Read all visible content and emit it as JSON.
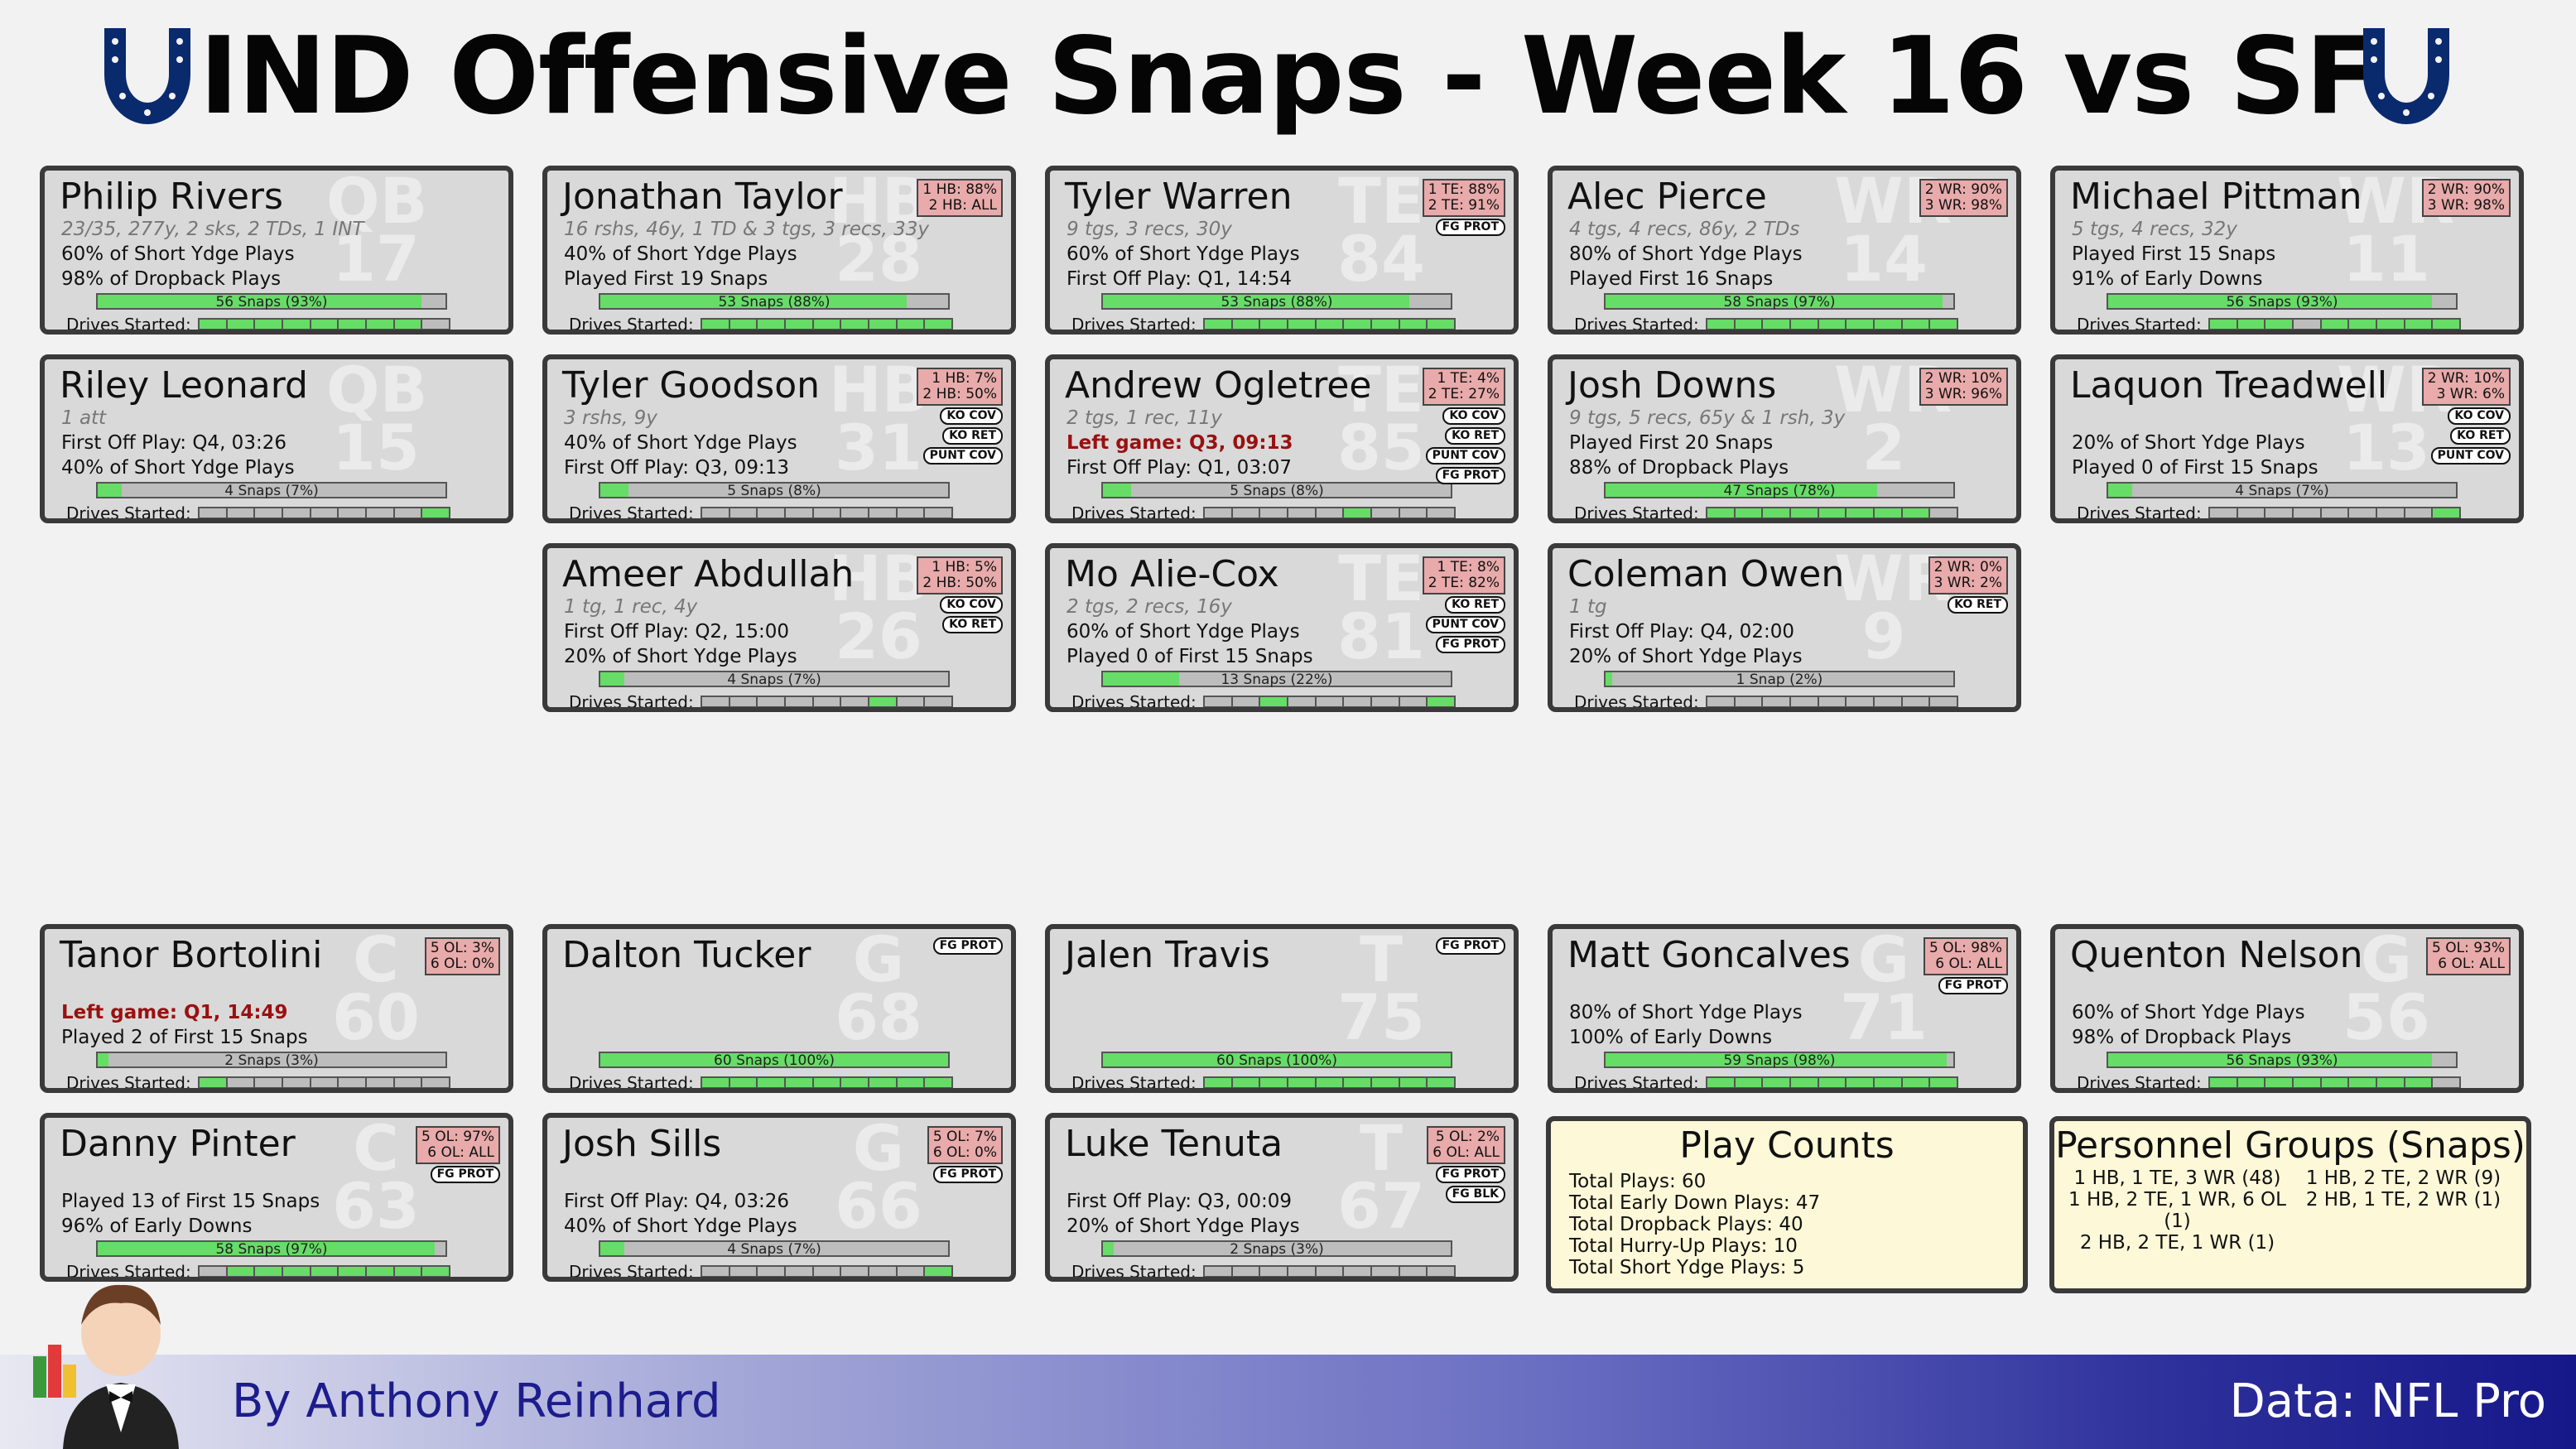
{
  "title": "IND Offensive Snaps - Week 16 vs SF",
  "byline": "By Anthony Reinhard",
  "source": "Data: NFL Pro",
  "colors": {
    "team_blue": "#0a2a6e",
    "bar_green": "#66dd66",
    "card_bg": "#d9d9d9",
    "badge_bg": "#e8aaaa",
    "info_bg": "#fdf8d8"
  },
  "drive_label": "Drives Started:",
  "cards": [
    {
      "name": "Philip Rivers",
      "pos": "QB",
      "num": "17",
      "lines": [
        {
          "t": "23/35, 277y, 2 sks, 2 TDs, 1 INT",
          "k": "stat"
        },
        {
          "t": "60% of Short Ydge Plays"
        },
        {
          "t": "98% of Dropback Plays"
        }
      ],
      "snaps": "56 Snaps (93%)",
      "pct": 93,
      "drives": [
        1,
        1,
        1,
        1,
        1,
        1,
        1,
        1,
        0
      ],
      "badge": "",
      "tags": []
    },
    {
      "name": "Jonathan Taylor",
      "pos": "HB",
      "num": "28",
      "lines": [
        {
          "t": "16 rshs, 46y, 1 TD & 3 tgs, 3 recs, 33y",
          "k": "stat"
        },
        {
          "t": "40% of Short Ydge Plays"
        },
        {
          "t": "Played First 19 Snaps"
        }
      ],
      "snaps": "53 Snaps (88%)",
      "pct": 88,
      "drives": [
        1,
        1,
        1,
        1,
        1,
        1,
        1,
        1,
        1
      ],
      "badge": "1 HB: 88%\n2 HB: ALL",
      "tags": []
    },
    {
      "name": "Tyler Warren",
      "pos": "TE",
      "num": "84",
      "lines": [
        {
          "t": "9 tgs, 3 recs, 30y",
          "k": "stat"
        },
        {
          "t": "60% of Short Ydge Plays"
        },
        {
          "t": "First Off Play: Q1, 14:54"
        }
      ],
      "snaps": "53 Snaps (88%)",
      "pct": 88,
      "drives": [
        1,
        1,
        1,
        1,
        1,
        1,
        1,
        1,
        1
      ],
      "badge": "1 TE: 88%\n2 TE: 91%",
      "tags": [
        "FG PROT"
      ]
    },
    {
      "name": "Alec Pierce",
      "pos": "WR",
      "num": "14",
      "lines": [
        {
          "t": "4 tgs, 4 recs, 86y, 2 TDs",
          "k": "stat"
        },
        {
          "t": "80% of Short Ydge Plays"
        },
        {
          "t": "Played First 16 Snaps"
        }
      ],
      "snaps": "58 Snaps (97%)",
      "pct": 97,
      "drives": [
        1,
        1,
        1,
        1,
        1,
        1,
        1,
        1,
        1
      ],
      "badge": "2 WR: 90%\n3 WR: 98%",
      "tags": []
    },
    {
      "name": "Michael Pittman",
      "pos": "WR",
      "num": "11",
      "lines": [
        {
          "t": "5 tgs, 4 recs, 32y",
          "k": "stat"
        },
        {
          "t": "Played First 15 Snaps"
        },
        {
          "t": "91% of Early Downs"
        }
      ],
      "snaps": "56 Snaps (93%)",
      "pct": 93,
      "drives": [
        1,
        1,
        1,
        0,
        1,
        1,
        1,
        1,
        1
      ],
      "badge": "2 WR: 90%\n3 WR: 98%",
      "tags": []
    },
    {
      "name": "Riley Leonard",
      "pos": "QB",
      "num": "15",
      "lines": [
        {
          "t": "1 att",
          "k": "stat"
        },
        {
          "t": "First Off Play: Q4, 03:26"
        },
        {
          "t": "40% of Short Ydge Plays"
        }
      ],
      "snaps": "4 Snaps (7%)",
      "pct": 7,
      "drives": [
        0,
        0,
        0,
        0,
        0,
        0,
        0,
        0,
        1
      ],
      "badge": "",
      "tags": []
    },
    {
      "name": "Tyler Goodson",
      "pos": "HB",
      "num": "31",
      "lines": [
        {
          "t": "3 rshs, 9y",
          "k": "stat"
        },
        {
          "t": "40% of Short Ydge Plays"
        },
        {
          "t": "First Off Play: Q3, 09:13"
        }
      ],
      "snaps": "5 Snaps (8%)",
      "pct": 8,
      "drives": [
        0,
        0,
        0,
        0,
        0,
        0,
        0,
        0,
        0
      ],
      "badge": "1 HB: 7%\n2 HB: 50%",
      "tags": [
        "KO COV",
        "KO RET",
        "PUNT COV"
      ]
    },
    {
      "name": "Andrew Ogletree",
      "pos": "TE",
      "num": "85",
      "lines": [
        {
          "t": "2 tgs, 1 rec, 11y",
          "k": "stat"
        },
        {
          "t": "Left game: Q3, 09:13",
          "k": "left"
        },
        {
          "t": "First Off Play: Q1, 03:07"
        }
      ],
      "snaps": "5 Snaps (8%)",
      "pct": 8,
      "drives": [
        0,
        0,
        0,
        0,
        0,
        1,
        0,
        0,
        0
      ],
      "badge": "1 TE: 4%\n2 TE: 27%",
      "tags": [
        "KO COV",
        "KO RET",
        "PUNT COV",
        "FG PROT"
      ]
    },
    {
      "name": "Josh Downs",
      "pos": "WR",
      "num": "2",
      "lines": [
        {
          "t": "9 tgs, 5 recs, 65y & 1 rsh, 3y",
          "k": "stat"
        },
        {
          "t": "Played First 20 Snaps"
        },
        {
          "t": "88% of Dropback Plays"
        }
      ],
      "snaps": "47 Snaps (78%)",
      "pct": 78,
      "drives": [
        1,
        1,
        1,
        1,
        1,
        1,
        1,
        1,
        0
      ],
      "badge": "2 WR: 10%\n3 WR: 96%",
      "tags": []
    },
    {
      "name": "Laquon Treadwell",
      "pos": "WR",
      "num": "13",
      "lines": [
        {
          "t": "",
          "k": "stat"
        },
        {
          "t": "20% of Short Ydge Plays"
        },
        {
          "t": "Played 0 of First 15 Snaps"
        }
      ],
      "snaps": "4 Snaps (7%)",
      "pct": 7,
      "drives": [
        0,
        0,
        0,
        0,
        0,
        0,
        0,
        0,
        1
      ],
      "badge": "2 WR: 10%\n3 WR: 6%",
      "tags": [
        "KO COV",
        "KO RET",
        "PUNT COV"
      ]
    },
    {
      "name": "Ameer Abdullah",
      "pos": "HB",
      "num": "26",
      "lines": [
        {
          "t": "1 tg, 1 rec, 4y",
          "k": "stat"
        },
        {
          "t": "First Off Play: Q2, 15:00"
        },
        {
          "t": "20% of Short Ydge Plays"
        }
      ],
      "snaps": "4 Snaps (7%)",
      "pct": 7,
      "drives": [
        0,
        0,
        0,
        0,
        0,
        0,
        1,
        0,
        0
      ],
      "badge": "1 HB: 5%\n2 HB: 50%",
      "tags": [
        "KO COV",
        "KO RET"
      ]
    },
    {
      "name": "Mo Alie-Cox",
      "pos": "TE",
      "num": "81",
      "lines": [
        {
          "t": "2 tgs, 2 recs, 16y",
          "k": "stat"
        },
        {
          "t": "60% of Short Ydge Plays"
        },
        {
          "t": "Played 0 of First 15 Snaps"
        }
      ],
      "snaps": "13 Snaps (22%)",
      "pct": 22,
      "drives": [
        0,
        0,
        1,
        0,
        0,
        0,
        0,
        0,
        1
      ],
      "badge": "1 TE: 8%\n2 TE: 82%",
      "tags": [
        "KO RET",
        "PUNT COV",
        "FG PROT"
      ]
    },
    {
      "name": "Coleman Owen",
      "pos": "WR",
      "num": "9",
      "lines": [
        {
          "t": "1 tg",
          "k": "stat"
        },
        {
          "t": "First Off Play: Q4, 02:00"
        },
        {
          "t": "20% of Short Ydge Plays"
        }
      ],
      "snaps": "1 Snap (2%)",
      "pct": 2,
      "drives": [
        0,
        0,
        0,
        0,
        0,
        0,
        0,
        0,
        0
      ],
      "badge": "2 WR: 0%\n3 WR: 2%",
      "tags": [
        "KO RET"
      ]
    },
    {
      "name": "Tanor Bortolini",
      "pos": "C",
      "num": "60",
      "lines": [
        {
          "t": "",
          "k": "stat"
        },
        {
          "t": "Left game: Q1, 14:49",
          "k": "left"
        },
        {
          "t": "Played 2 of First 15 Snaps"
        }
      ],
      "snaps": "2 Snaps (3%)",
      "pct": 3,
      "drives": [
        1,
        0,
        0,
        0,
        0,
        0,
        0,
        0,
        0
      ],
      "badge": "5 OL: 3%\n6 OL: 0%",
      "tags": []
    },
    {
      "name": "Dalton Tucker",
      "pos": "G",
      "num": "68",
      "lines": [
        {
          "t": "",
          "k": "stat"
        },
        {
          "t": ""
        },
        {
          "t": ""
        }
      ],
      "snaps": "60 Snaps (100%)",
      "pct": 100,
      "drives": [
        1,
        1,
        1,
        1,
        1,
        1,
        1,
        1,
        1
      ],
      "badge": "",
      "tags": [
        "FG PROT"
      ]
    },
    {
      "name": "Jalen Travis",
      "pos": "T",
      "num": "75",
      "lines": [
        {
          "t": "",
          "k": "stat"
        },
        {
          "t": ""
        },
        {
          "t": ""
        }
      ],
      "snaps": "60 Snaps (100%)",
      "pct": 100,
      "drives": [
        1,
        1,
        1,
        1,
        1,
        1,
        1,
        1,
        1
      ],
      "badge": "",
      "tags": [
        "FG PROT"
      ]
    },
    {
      "name": "Matt Goncalves",
      "pos": "G",
      "num": "71",
      "lines": [
        {
          "t": "",
          "k": "stat"
        },
        {
          "t": "80% of Short Ydge Plays"
        },
        {
          "t": "100% of Early Downs"
        }
      ],
      "snaps": "59 Snaps (98%)",
      "pct": 98,
      "drives": [
        1,
        1,
        1,
        1,
        1,
        1,
        1,
        1,
        1
      ],
      "badge": "5 OL: 98%\n6 OL: ALL",
      "tags": [
        "FG PROT"
      ]
    },
    {
      "name": "Quenton Nelson",
      "pos": "G",
      "num": "56",
      "lines": [
        {
          "t": "",
          "k": "stat"
        },
        {
          "t": "60% of Short Ydge Plays"
        },
        {
          "t": "98% of Dropback Plays"
        }
      ],
      "snaps": "56 Snaps (93%)",
      "pct": 93,
      "drives": [
        1,
        1,
        1,
        1,
        1,
        1,
        1,
        1,
        0
      ],
      "badge": "5 OL: 93%\n6 OL: ALL",
      "tags": []
    },
    {
      "name": "Danny Pinter",
      "pos": "C",
      "num": "63",
      "lines": [
        {
          "t": "",
          "k": "stat"
        },
        {
          "t": "Played 13 of First 15 Snaps"
        },
        {
          "t": "96% of Early Downs"
        }
      ],
      "snaps": "58 Snaps (97%)",
      "pct": 97,
      "drives": [
        0,
        1,
        1,
        1,
        1,
        1,
        1,
        1,
        1
      ],
      "badge": "5 OL: 97%\n6 OL: ALL",
      "tags": [
        "FG PROT"
      ]
    },
    {
      "name": "Josh Sills",
      "pos": "G",
      "num": "66",
      "lines": [
        {
          "t": "",
          "k": "stat"
        },
        {
          "t": "First Off Play: Q4, 03:26"
        },
        {
          "t": "40% of Short Ydge Plays"
        }
      ],
      "snaps": "4 Snaps (7%)",
      "pct": 7,
      "drives": [
        0,
        0,
        0,
        0,
        0,
        0,
        0,
        0,
        1
      ],
      "badge": "5 OL: 7%\n6 OL: 0%",
      "tags": [
        "FG PROT"
      ]
    },
    {
      "name": "Luke Tenuta",
      "pos": "T",
      "num": "67",
      "lines": [
        {
          "t": "",
          "k": "stat"
        },
        {
          "t": "First Off Play: Q3, 00:09"
        },
        {
          "t": "20% of Short Ydge Plays"
        }
      ],
      "snaps": "2 Snaps (3%)",
      "pct": 3,
      "drives": [
        0,
        0,
        0,
        0,
        0,
        0,
        0,
        0,
        0
      ],
      "badge": "5 OL: 2%\n6 OL: ALL",
      "tags": [
        "FG PROT",
        "FG BLK"
      ]
    }
  ],
  "play_counts": {
    "title": "Play Counts",
    "rows": [
      "Total Plays: 60",
      "Total Early Down Plays: 47",
      "Total Dropback Plays: 40",
      "Total Hurry-Up Plays: 10",
      "Total Short Ydge Plays: 5"
    ]
  },
  "personnel": {
    "title": "Personnel Groups (Snaps)",
    "rows": [
      "1 HB, 1 TE, 3 WR (48)",
      "1 HB, 2 TE, 2 WR (9)",
      "1 HB, 2 TE, 1 WR, 6 OL (1)",
      "2 HB, 1 TE, 2 WR (1)",
      "2 HB, 2 TE, 1 WR (1)"
    ]
  }
}
